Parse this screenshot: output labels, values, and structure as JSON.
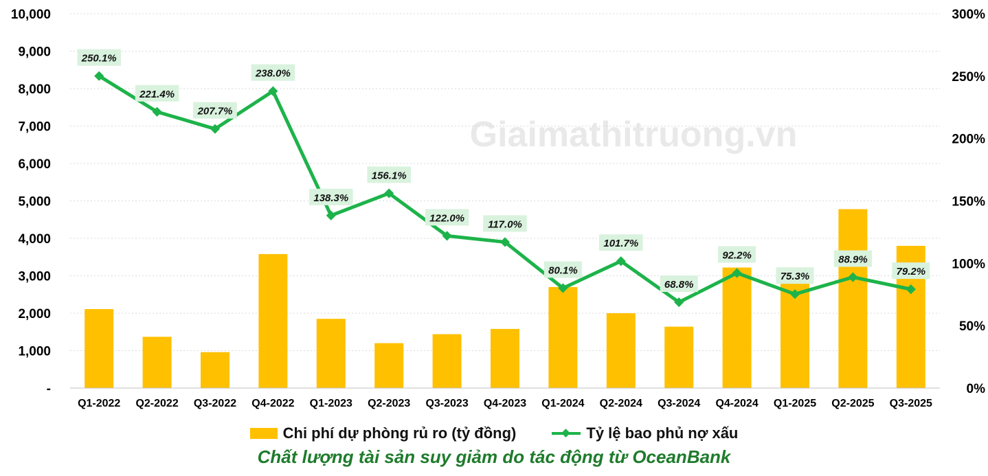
{
  "watermark": "Giaimathitruong.vn",
  "caption": "Chất lượng tài sản suy giảm do tác động từ OceanBank",
  "colors": {
    "bar": "#FFC000",
    "line": "#1DB34A",
    "label_bg": "#D9F2DE",
    "caption": "#1E7B2C"
  },
  "chart_data": {
    "type": "bar+line",
    "categories": [
      "Q1-2022",
      "Q2-2022",
      "Q3-2022",
      "Q4-2022",
      "Q1-2023",
      "Q2-2023",
      "Q3-2023",
      "Q4-2023",
      "Q1-2024",
      "Q2-2024",
      "Q3-2024",
      "Q4-2024",
      "Q1-2025",
      "Q2-2025",
      "Q3-2025"
    ],
    "left_axis": {
      "ylim": [
        0,
        10000
      ],
      "ticks": [
        "-",
        "1,000",
        "2,000",
        "3,000",
        "4,000",
        "5,000",
        "6,000",
        "7,000",
        "8,000",
        "9,000",
        "10,000"
      ]
    },
    "right_axis": {
      "ylim": [
        0,
        300
      ],
      "ticks": [
        "0%",
        "50%",
        "100%",
        "150%",
        "200%",
        "250%",
        "300%"
      ]
    },
    "grid": "horizontal dashed",
    "legend_position": "bottom",
    "series": [
      {
        "name": "Chi phí dự phòng rủ ro (tỷ đồng)",
        "type": "bar",
        "axis": "left",
        "values": [
          2110,
          1370,
          960,
          3580,
          1850,
          1200,
          1440,
          1580,
          2700,
          2000,
          1640,
          3220,
          3030,
          4780,
          3800
        ]
      },
      {
        "name": "Tỷ lệ bao phủ nợ xấu",
        "type": "line",
        "axis": "right",
        "values": [
          250.1,
          221.4,
          207.7,
          238.0,
          138.3,
          156.1,
          122.0,
          117.0,
          80.1,
          101.7,
          68.8,
          92.2,
          75.3,
          88.9,
          79.2
        ],
        "labels": [
          "250.1%",
          "221.4%",
          "207.7%",
          "238.0%",
          "138.3%",
          "156.1%",
          "122.0%",
          "117.0%",
          "80.1%",
          "101.7%",
          "68.8%",
          "92.2%",
          "75.3%",
          "88.9%",
          "79.2%"
        ]
      }
    ]
  }
}
